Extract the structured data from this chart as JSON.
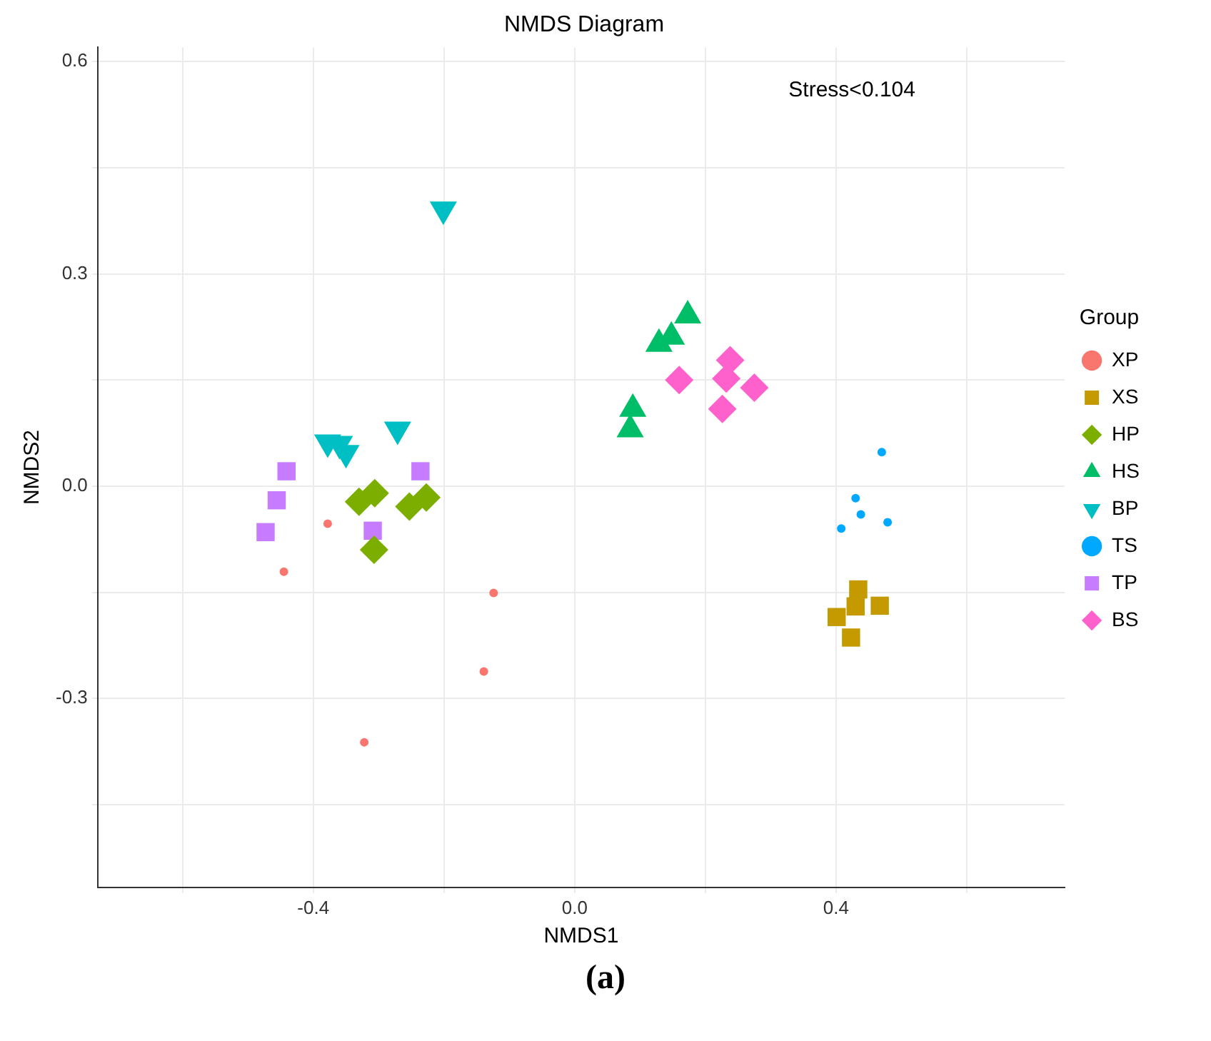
{
  "chart_data": {
    "type": "scatter",
    "title": "NMDS Diagram",
    "xlabel": "NMDS1",
    "ylabel": "NMDS2",
    "legend_title": "Group",
    "legend": "right",
    "grid": true,
    "annotations": [
      "Stress<0.104",
      "(a)"
    ],
    "xlim": [
      -0.73,
      0.75
    ],
    "ylim": [
      -0.567,
      0.62
    ],
    "xticks": [
      {
        "value": -0.6,
        "label": null
      },
      {
        "value": -0.4,
        "label": "-0.4"
      },
      {
        "value": -0.2,
        "label": null
      },
      {
        "value": 0,
        "label": "0.0"
      },
      {
        "value": 0.2,
        "label": null
      },
      {
        "value": 0.4,
        "label": "0.4"
      },
      {
        "value": 0.6,
        "label": null
      }
    ],
    "yticks": [
      {
        "value": -0.45,
        "label": null
      },
      {
        "value": -0.3,
        "label": "-0.3"
      },
      {
        "value": -0.15,
        "label": null
      },
      {
        "value": 0,
        "label": "0.0"
      },
      {
        "value": 0.15,
        "label": null
      },
      {
        "value": 0.3,
        "label": "0.3"
      },
      {
        "value": 0.45,
        "label": null
      },
      {
        "value": 0.6,
        "label": "0.6"
      }
    ],
    "series": [
      {
        "name": "XP",
        "color": "#f8766d",
        "marker": "circle",
        "x": [
          -0.378,
          -0.445,
          -0.124,
          -0.139,
          -0.322
        ],
        "values": [
          -0.053,
          -0.121,
          -0.151,
          -0.262,
          -0.362
        ]
      },
      {
        "name": "XS",
        "color": "#c49a00",
        "marker": "square",
        "x": [
          0.434,
          0.467,
          0.43,
          0.401,
          0.423
        ],
        "values": [
          -0.146,
          -0.169,
          -0.17,
          -0.185,
          -0.214
        ]
      },
      {
        "name": "HP",
        "color": "#7cae00",
        "marker": "diamond",
        "x": [
          -0.33,
          -0.306,
          -0.253,
          -0.227,
          -0.307
        ],
        "values": [
          -0.022,
          -0.01,
          -0.029,
          -0.016,
          -0.09
        ]
      },
      {
        "name": "HS",
        "color": "#00be67",
        "marker": "triangle",
        "x": [
          0.173,
          0.148,
          0.129,
          0.089,
          0.085
        ],
        "values": [
          0.241,
          0.211,
          0.201,
          0.109,
          0.08
        ]
      },
      {
        "name": "BP",
        "color": "#00bfc4",
        "marker": "triangle-down",
        "x": [
          -0.201,
          -0.271,
          -0.378,
          -0.36,
          -0.35
        ],
        "values": [
          0.391,
          0.08,
          0.062,
          0.06,
          0.047
        ]
      },
      {
        "name": "TS",
        "color": "#00a9ff",
        "marker": "circle",
        "x": [
          0.47,
          0.43,
          0.438,
          0.479,
          0.408
        ],
        "values": [
          0.048,
          -0.017,
          -0.04,
          -0.051,
          -0.06
        ]
      },
      {
        "name": "TP",
        "color": "#c77cff",
        "marker": "square",
        "x": [
          -0.441,
          -0.456,
          -0.473,
          -0.236,
          -0.309
        ],
        "values": [
          0.021,
          -0.02,
          -0.065,
          0.021,
          -0.063
        ]
      },
      {
        "name": "BS",
        "color": "#ff61cc",
        "marker": "diamond",
        "x": [
          0.238,
          0.232,
          0.16,
          0.275,
          0.226
        ],
        "values": [
          0.178,
          0.152,
          0.15,
          0.139,
          0.109
        ]
      }
    ]
  }
}
